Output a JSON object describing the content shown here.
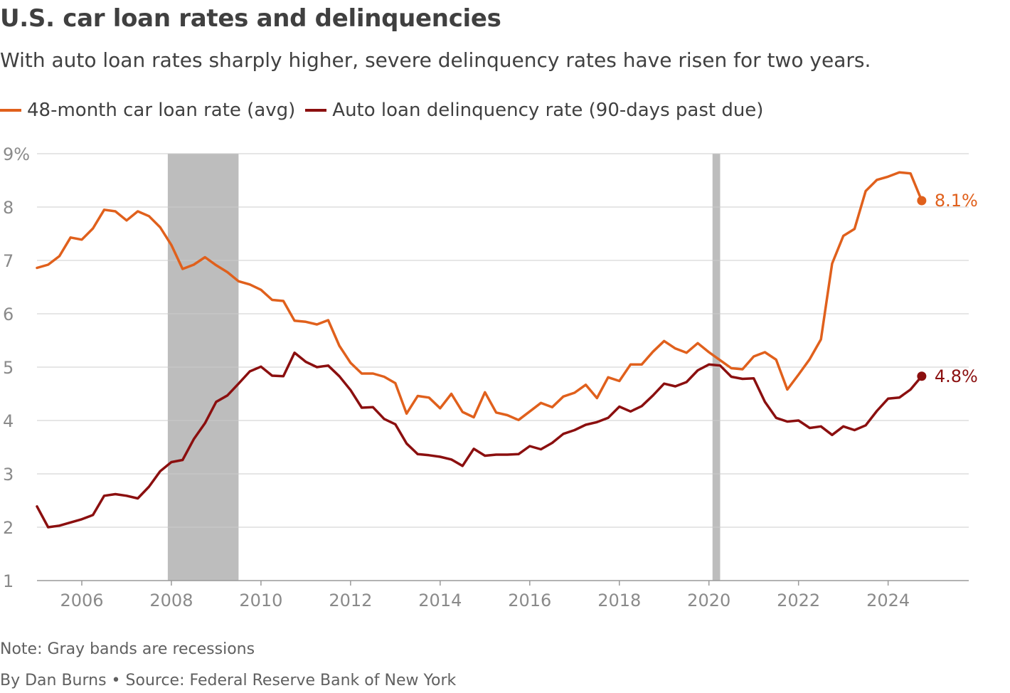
{
  "title": "U.S. car loan rates and delinquencies",
  "subtitle": "With auto loan rates sharply higher, severe delinquency rates have risen for two years.",
  "note": "Note: Gray bands are recessions",
  "byline": "By Dan Burns • Source: Federal Reserve Bank of New York",
  "colors": {
    "rate": "#e0601c",
    "delinquency": "#8b0f0f",
    "recession": "#bdbdbd",
    "grid": "#cccccc"
  },
  "chart_data": {
    "type": "line",
    "title": "U.S. car loan rates and delinquencies",
    "subtitle": "With auto loan rates sharply higher, severe delinquency rates have risen for two years.",
    "xlabel": "",
    "ylabel": "",
    "xlim": [
      2005,
      2025.8
    ],
    "ylim": [
      1,
      9
    ],
    "x_ticks": [
      2006,
      2008,
      2010,
      2012,
      2014,
      2016,
      2018,
      2020,
      2022,
      2024
    ],
    "y_ticks": [
      {
        "value": 1,
        "label": "1"
      },
      {
        "value": 2,
        "label": "2"
      },
      {
        "value": 3,
        "label": "3"
      },
      {
        "value": 4,
        "label": "4"
      },
      {
        "value": 5,
        "label": "5"
      },
      {
        "value": 6,
        "label": "6"
      },
      {
        "value": 7,
        "label": "7"
      },
      {
        "value": 8,
        "label": "8"
      },
      {
        "value": 9,
        "label": "9%"
      }
    ],
    "grid": true,
    "legend_position": "top-left",
    "recessions": [
      [
        2007.92,
        2009.5
      ],
      [
        2020.08,
        2020.25
      ]
    ],
    "series": [
      {
        "name": "48-month car loan rate (avg)",
        "color": "#e0601c",
        "end_label": "8.1%",
        "points": [
          [
            2005.0,
            6.86
          ],
          [
            2005.25,
            6.92
          ],
          [
            2005.5,
            7.08
          ],
          [
            2005.75,
            7.43
          ],
          [
            2006.0,
            7.39
          ],
          [
            2006.25,
            7.6
          ],
          [
            2006.5,
            7.95
          ],
          [
            2006.75,
            7.92
          ],
          [
            2007.0,
            7.75
          ],
          [
            2007.25,
            7.92
          ],
          [
            2007.5,
            7.83
          ],
          [
            2007.75,
            7.62
          ],
          [
            2008.0,
            7.29
          ],
          [
            2008.25,
            6.84
          ],
          [
            2008.5,
            6.92
          ],
          [
            2008.75,
            7.06
          ],
          [
            2009.0,
            6.91
          ],
          [
            2009.25,
            6.78
          ],
          [
            2009.5,
            6.61
          ],
          [
            2009.75,
            6.55
          ],
          [
            2010.0,
            6.45
          ],
          [
            2010.25,
            6.26
          ],
          [
            2010.5,
            6.24
          ],
          [
            2010.75,
            5.87
          ],
          [
            2011.0,
            5.85
          ],
          [
            2011.25,
            5.8
          ],
          [
            2011.5,
            5.88
          ],
          [
            2011.75,
            5.4
          ],
          [
            2012.0,
            5.08
          ],
          [
            2012.25,
            4.88
          ],
          [
            2012.5,
            4.88
          ],
          [
            2012.75,
            4.82
          ],
          [
            2013.0,
            4.7
          ],
          [
            2013.25,
            4.13
          ],
          [
            2013.5,
            4.46
          ],
          [
            2013.75,
            4.43
          ],
          [
            2014.0,
            4.23
          ],
          [
            2014.25,
            4.5
          ],
          [
            2014.5,
            4.16
          ],
          [
            2014.75,
            4.06
          ],
          [
            2015.0,
            4.53
          ],
          [
            2015.25,
            4.15
          ],
          [
            2015.5,
            4.1
          ],
          [
            2015.75,
            4.01
          ],
          [
            2016.0,
            4.17
          ],
          [
            2016.25,
            4.33
          ],
          [
            2016.5,
            4.25
          ],
          [
            2016.75,
            4.45
          ],
          [
            2017.0,
            4.52
          ],
          [
            2017.25,
            4.67
          ],
          [
            2017.5,
            4.42
          ],
          [
            2017.75,
            4.81
          ],
          [
            2018.0,
            4.74
          ],
          [
            2018.25,
            5.05
          ],
          [
            2018.5,
            5.05
          ],
          [
            2018.75,
            5.29
          ],
          [
            2019.0,
            5.49
          ],
          [
            2019.25,
            5.35
          ],
          [
            2019.5,
            5.27
          ],
          [
            2019.75,
            5.45
          ],
          [
            2020.0,
            5.28
          ],
          [
            2020.25,
            5.13
          ],
          [
            2020.5,
            4.98
          ],
          [
            2020.75,
            4.96
          ],
          [
            2021.0,
            5.2
          ],
          [
            2021.25,
            5.28
          ],
          [
            2021.5,
            5.14
          ],
          [
            2021.75,
            4.58
          ],
          [
            2022.0,
            4.86
          ],
          [
            2022.25,
            5.15
          ],
          [
            2022.5,
            5.52
          ],
          [
            2022.75,
            6.94
          ],
          [
            2023.0,
            7.46
          ],
          [
            2023.25,
            7.59
          ],
          [
            2023.5,
            8.3
          ],
          [
            2023.75,
            8.51
          ],
          [
            2024.0,
            8.57
          ],
          [
            2024.25,
            8.65
          ],
          [
            2024.5,
            8.63
          ],
          [
            2024.75,
            8.12
          ]
        ]
      },
      {
        "name": "Auto loan delinquency rate (90-days past due)",
        "color": "#8b0f0f",
        "end_label": "4.8%",
        "points": [
          [
            2005.0,
            2.39
          ],
          [
            2005.25,
            2.0
          ],
          [
            2005.5,
            2.03
          ],
          [
            2005.75,
            2.09
          ],
          [
            2006.0,
            2.15
          ],
          [
            2006.25,
            2.23
          ],
          [
            2006.5,
            2.59
          ],
          [
            2006.75,
            2.62
          ],
          [
            2007.0,
            2.59
          ],
          [
            2007.25,
            2.54
          ],
          [
            2007.5,
            2.76
          ],
          [
            2007.75,
            3.05
          ],
          [
            2008.0,
            3.22
          ],
          [
            2008.25,
            3.26
          ],
          [
            2008.5,
            3.65
          ],
          [
            2008.75,
            3.95
          ],
          [
            2009.0,
            4.35
          ],
          [
            2009.25,
            4.47
          ],
          [
            2009.5,
            4.69
          ],
          [
            2009.75,
            4.92
          ],
          [
            2010.0,
            5.01
          ],
          [
            2010.25,
            4.84
          ],
          [
            2010.5,
            4.83
          ],
          [
            2010.75,
            5.27
          ],
          [
            2011.0,
            5.1
          ],
          [
            2011.25,
            5.0
          ],
          [
            2011.5,
            5.03
          ],
          [
            2011.75,
            4.83
          ],
          [
            2012.0,
            4.57
          ],
          [
            2012.25,
            4.24
          ],
          [
            2012.5,
            4.25
          ],
          [
            2012.75,
            4.03
          ],
          [
            2013.0,
            3.93
          ],
          [
            2013.25,
            3.57
          ],
          [
            2013.5,
            3.37
          ],
          [
            2013.75,
            3.35
          ],
          [
            2014.0,
            3.32
          ],
          [
            2014.25,
            3.27
          ],
          [
            2014.5,
            3.15
          ],
          [
            2014.75,
            3.47
          ],
          [
            2015.0,
            3.34
          ],
          [
            2015.25,
            3.36
          ],
          [
            2015.5,
            3.36
          ],
          [
            2015.75,
            3.37
          ],
          [
            2016.0,
            3.52
          ],
          [
            2016.25,
            3.46
          ],
          [
            2016.5,
            3.58
          ],
          [
            2016.75,
            3.75
          ],
          [
            2017.0,
            3.82
          ],
          [
            2017.25,
            3.92
          ],
          [
            2017.5,
            3.97
          ],
          [
            2017.75,
            4.05
          ],
          [
            2018.0,
            4.26
          ],
          [
            2018.25,
            4.17
          ],
          [
            2018.5,
            4.27
          ],
          [
            2018.75,
            4.47
          ],
          [
            2019.0,
            4.69
          ],
          [
            2019.25,
            4.64
          ],
          [
            2019.5,
            4.72
          ],
          [
            2019.75,
            4.94
          ],
          [
            2020.0,
            5.05
          ],
          [
            2020.25,
            5.03
          ],
          [
            2020.5,
            4.82
          ],
          [
            2020.75,
            4.78
          ],
          [
            2021.0,
            4.79
          ],
          [
            2021.25,
            4.35
          ],
          [
            2021.5,
            4.05
          ],
          [
            2021.75,
            3.98
          ],
          [
            2022.0,
            4.0
          ],
          [
            2022.25,
            3.86
          ],
          [
            2022.5,
            3.89
          ],
          [
            2022.75,
            3.73
          ],
          [
            2023.0,
            3.89
          ],
          [
            2023.25,
            3.82
          ],
          [
            2023.5,
            3.91
          ],
          [
            2023.75,
            4.18
          ],
          [
            2024.0,
            4.41
          ],
          [
            2024.25,
            4.43
          ],
          [
            2024.5,
            4.58
          ],
          [
            2024.75,
            4.83
          ]
        ]
      }
    ]
  }
}
